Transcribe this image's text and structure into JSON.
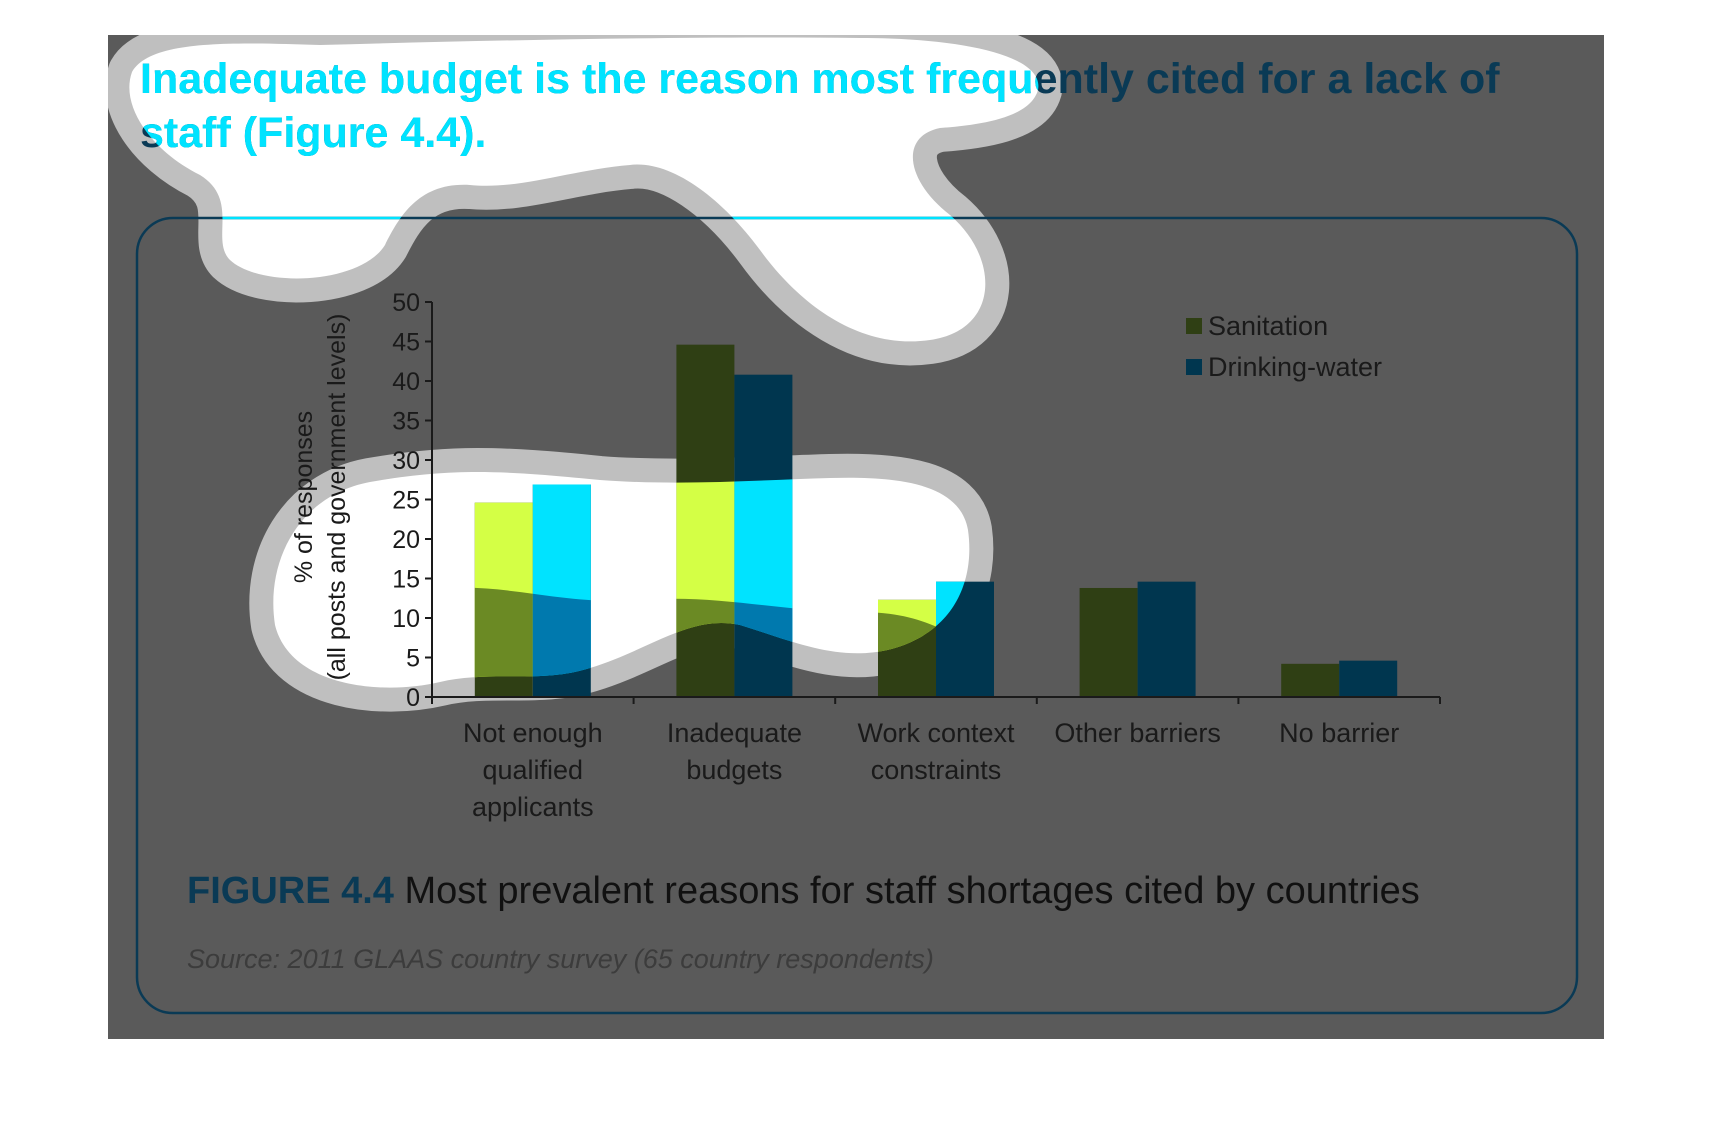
{
  "heading": "Inadequate budget is the reason most frequently cited for a lack of staff (Figure 4.4).",
  "caption": {
    "figure_label": "FIGURE 4.4",
    "title": "Most prevalent reasons for staff shortages cited by countries"
  },
  "source": "Source: 2011 GLAAS country survey (65 country respondents)",
  "colors": {
    "overlay": "#5a5a5a",
    "sanitation_dim": "#2f3f14",
    "drinking_water_dim": "#00364f",
    "sanitation_bright": "#d4ff45",
    "drinking_water_bright": "#00e3ff",
    "sanitation_mid": "#6b8a24",
    "drinking_water_mid": "#0079ae",
    "heading_bright": "#00e3ff",
    "heading_dim": "#0a3a55"
  },
  "chart_data": {
    "type": "bar",
    "title": "",
    "ylabel": "% of responses (all posts and government levels)",
    "ylabel_lines": [
      "% of responses",
      "(all posts and government levels)"
    ],
    "xlabel": "",
    "ylim": [
      0,
      50
    ],
    "yticks": [
      "0",
      "5",
      "10",
      "15",
      "20",
      "25",
      "30",
      "35",
      "40",
      "45",
      "50"
    ],
    "categories": [
      "Not enough qualified applicants",
      "Inadequate budgets",
      "Work context constraints",
      "Other barriers",
      "No barrier"
    ],
    "category_lines": [
      [
        "Not enough",
        "qualified",
        "applicants"
      ],
      [
        "Inadequate",
        "budgets"
      ],
      [
        "Work context",
        "constraints"
      ],
      [
        "Other barriers"
      ],
      [
        "No barrier"
      ]
    ],
    "series": [
      {
        "name": "Sanitation",
        "values": [
          24.6,
          44.6,
          12.3,
          13.8,
          4.2
        ]
      },
      {
        "name": "Drinking-water",
        "values": [
          26.9,
          40.8,
          14.6,
          14.6,
          4.6
        ]
      }
    ],
    "legend_position": "top-right",
    "grid": false
  }
}
